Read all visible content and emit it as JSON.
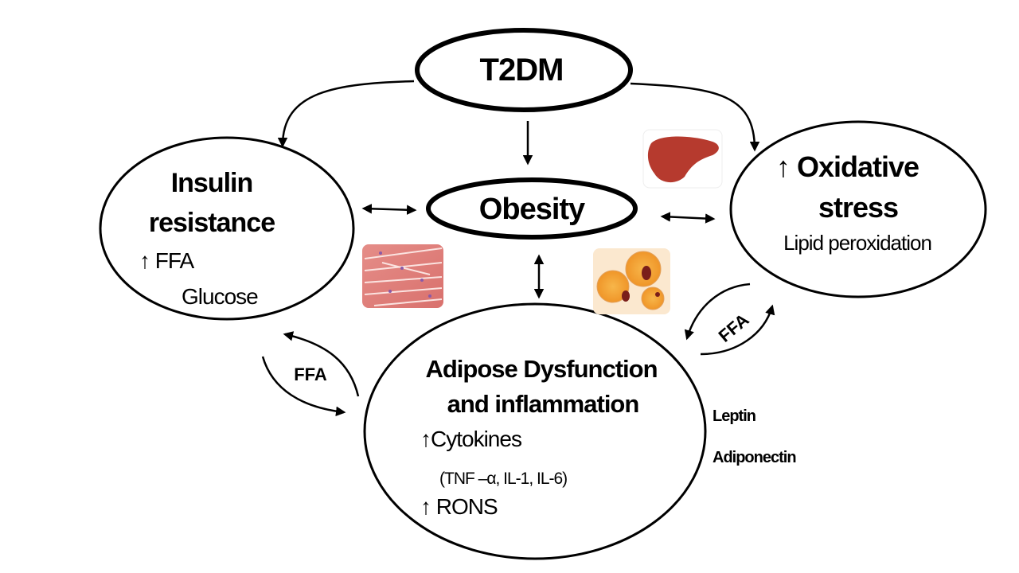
{
  "nodes": {
    "t2dm": {
      "label": "T2DM"
    },
    "obesity": {
      "label": "Obesity"
    },
    "insulin": {
      "title_line1": "Insulin",
      "title_line2": "resistance",
      "item1": "↑ FFA",
      "item2": "Glucose"
    },
    "oxidative": {
      "title_line1": "↑  Oxidative",
      "title_line2": "stress",
      "item1": "Lipid peroxidation"
    },
    "adipose": {
      "title_line1": "Adipose Dysfunction",
      "title_line2": "and inflammation",
      "item1": "↑Cytokines",
      "item2": "(TNF –α, IL-1, IL-6)",
      "item3": "↑ RONS"
    }
  },
  "cycles": {
    "left": "FFA",
    "right": "FFA"
  },
  "side_labels": {
    "leptin": "Leptin",
    "adiponectin": "Adiponectin"
  },
  "images": {
    "muscle": "muscle-tissue",
    "fat": "adipocytes",
    "liver": "liver"
  },
  "colors": {
    "stroke": "#000000",
    "muscle": "#e38a86",
    "fat": "#f2a33a",
    "liver": "#b63a2e"
  }
}
